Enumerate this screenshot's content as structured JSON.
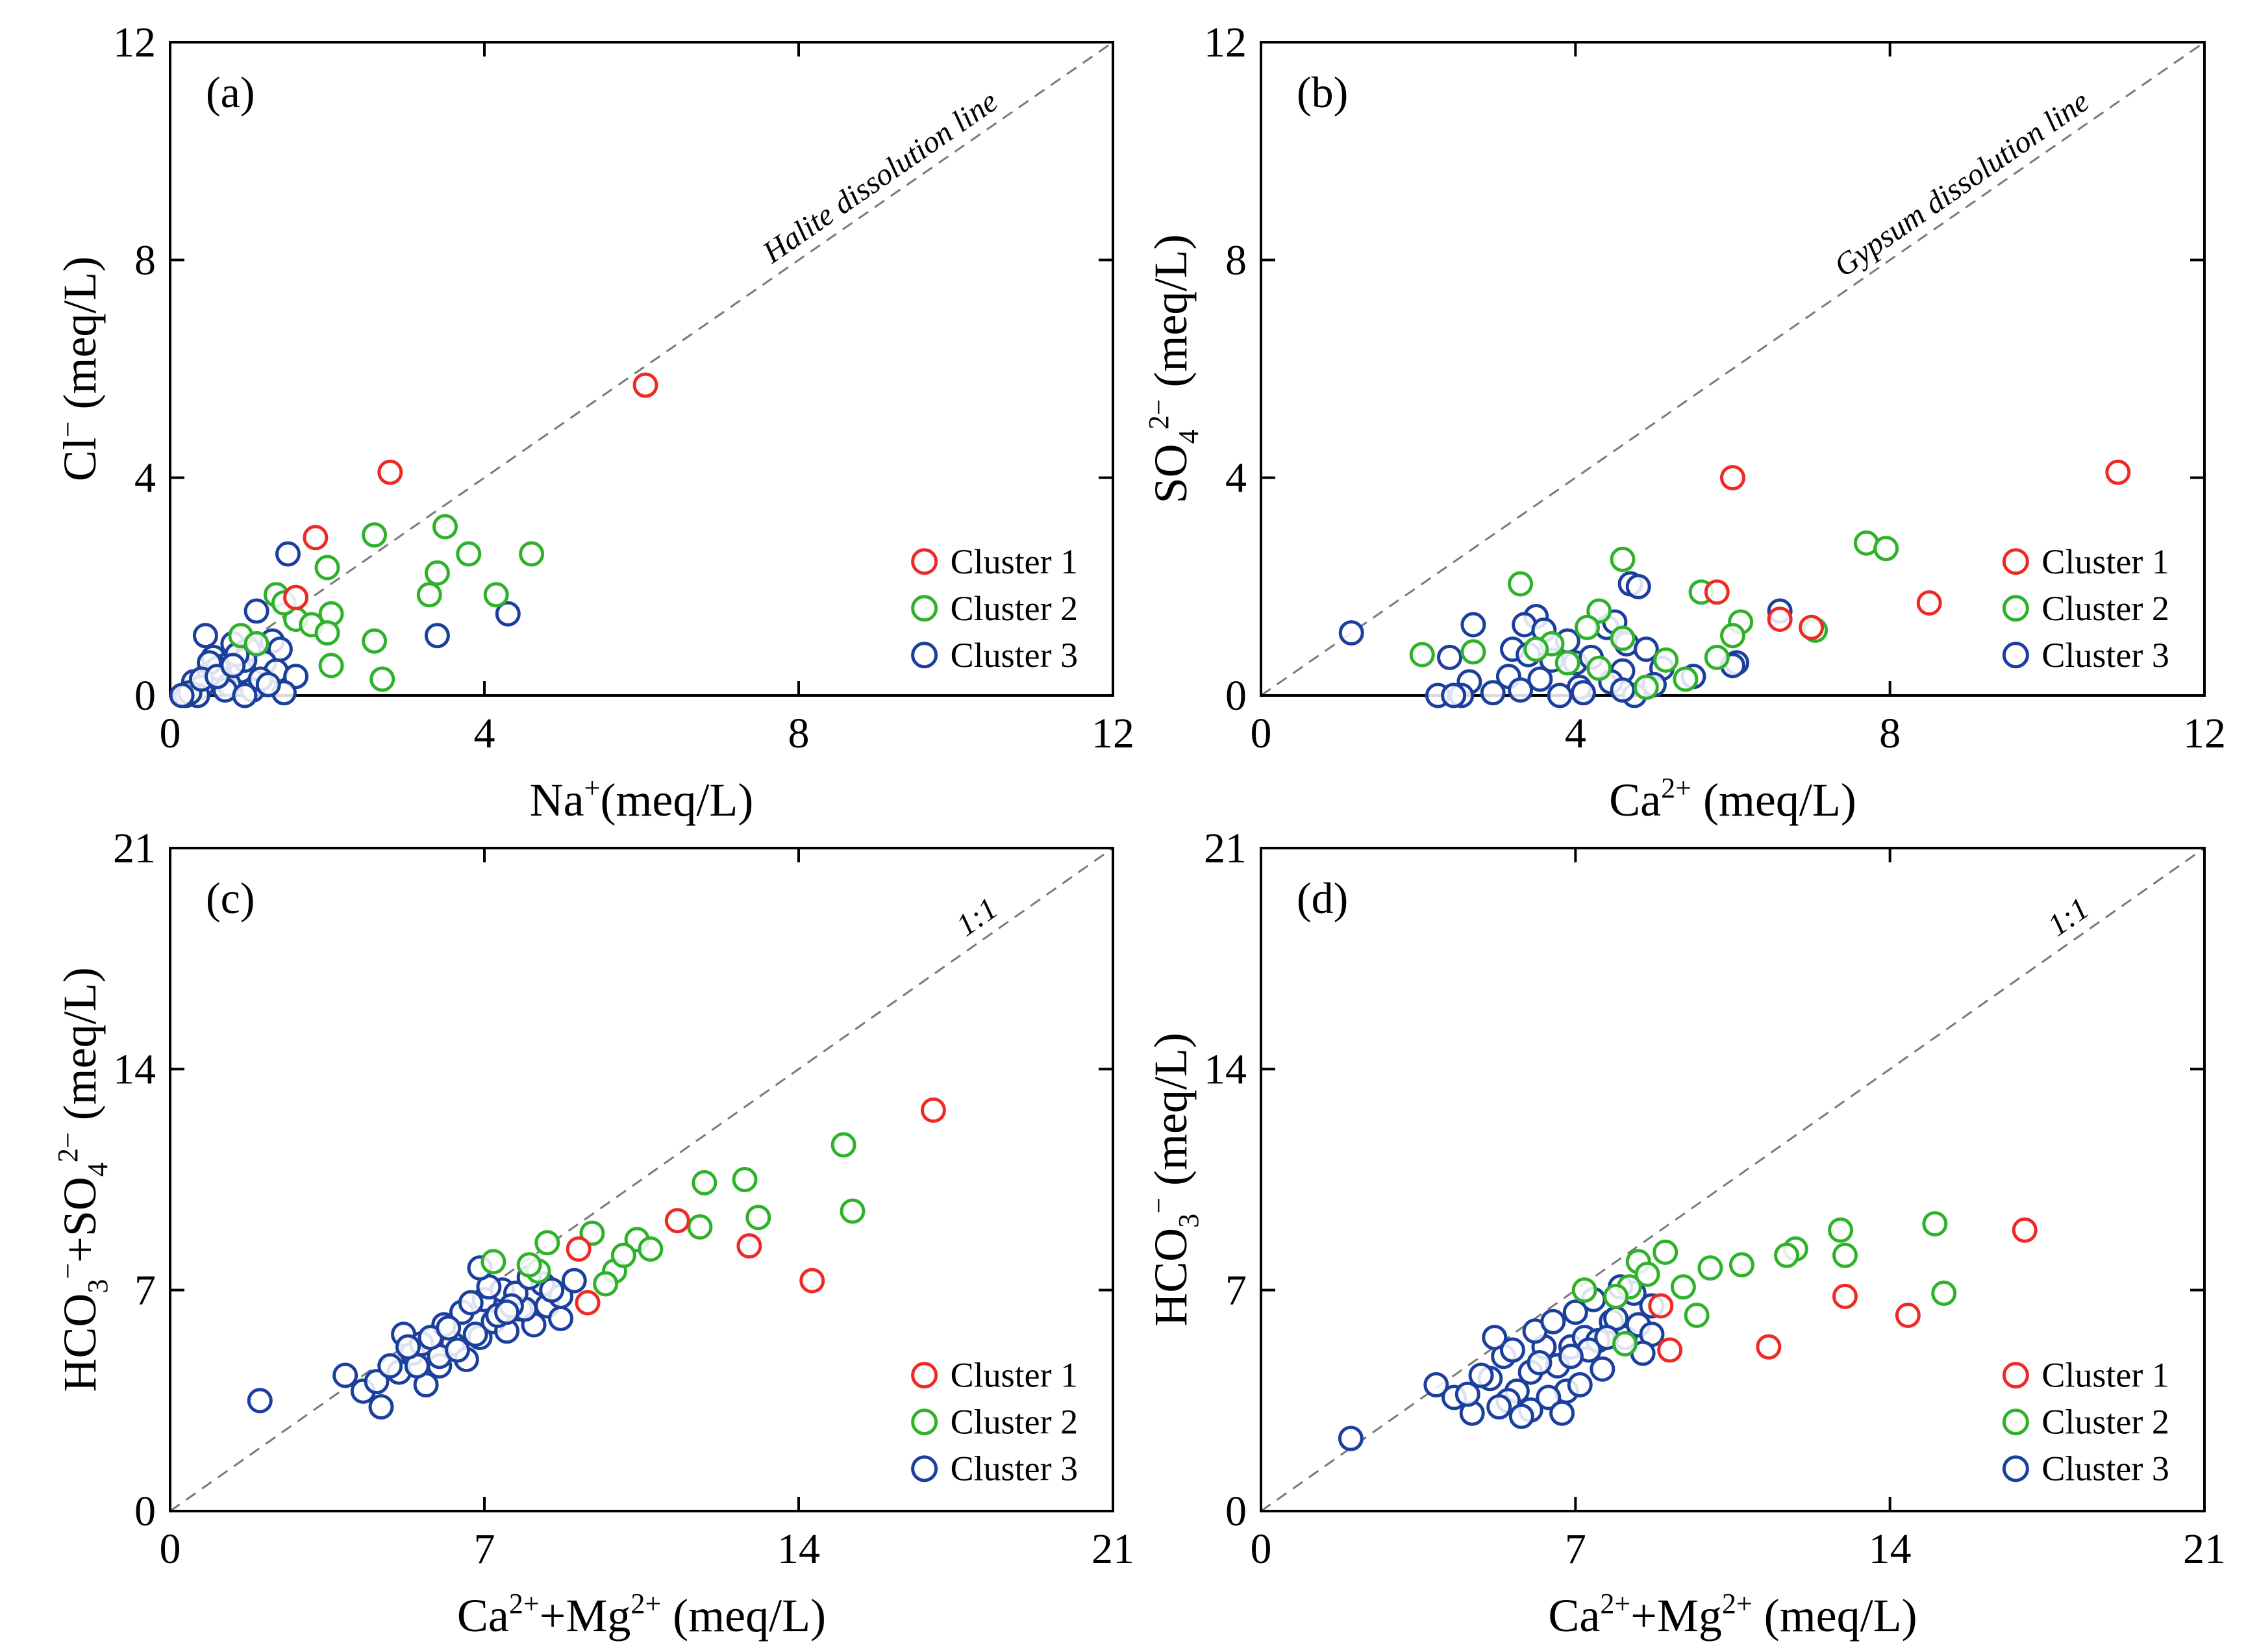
{
  "colors": {
    "cluster1": "#ee2a24",
    "cluster2": "#2fb12a",
    "cluster3": "#1b3f9c",
    "axis": "#000000",
    "refline": "#7a7a7a"
  },
  "legend": [
    "Cluster 1",
    "Cluster 2",
    "Cluster 3"
  ],
  "chart_data": [
    {
      "type": "scatter",
      "panel": "(a)",
      "diag_label": "Halite dissolution line",
      "xlabel": {
        "main": "Na",
        "sup": "+",
        "unit": "(meq/L)"
      },
      "ylabel": {
        "main": "Cl",
        "sup": "−",
        "unit": " (meq/L)"
      },
      "xlim": [
        0,
        12
      ],
      "ylim": [
        0,
        12
      ],
      "xticks": [
        0,
        4,
        8,
        12
      ],
      "yticks": [
        0,
        4,
        8,
        12
      ],
      "tick_labels_x": [
        "0",
        "4",
        "8",
        "12"
      ],
      "tick_labels_y": [
        "0",
        "4",
        "8",
        "12"
      ],
      "series": [
        {
          "name": "Cluster 1",
          "x": [
            6.05,
            2.8,
            1.85,
            1.6
          ],
          "y": [
            5.7,
            4.1,
            2.9,
            1.8
          ]
        },
        {
          "name": "Cluster 2",
          "x": [
            3.5,
            2.6,
            2.0,
            3.8,
            4.6,
            3.4,
            3.3,
            4.15,
            1.35,
            1.6,
            2.05,
            1.8,
            2.0,
            2.6,
            2.05,
            2.7,
            0.9,
            1.1,
            1.45
          ],
          "y": [
            3.1,
            2.95,
            2.35,
            2.6,
            2.6,
            2.25,
            1.85,
            1.85,
            1.85,
            1.4,
            1.5,
            1.3,
            1.15,
            1.0,
            0.55,
            0.3,
            1.1,
            0.95,
            1.7
          ]
        },
        {
          "name": "Cluster 3",
          "x": [
            1.5,
            0.45,
            1.1,
            0.8,
            1.3,
            1.0,
            0.55,
            0.7,
            1.4,
            0.9,
            0.3,
            0.5,
            1.2,
            0.65,
            0.4,
            0.2,
            0.95,
            1.35,
            0.6,
            0.75,
            1.6,
            1.05,
            0.35,
            0.85,
            0.25,
            1.15,
            0.5,
            0.15,
            0.7,
            1.45,
            0.4,
            0.95,
            3.4,
            4.3,
            0.6,
            0.8,
            1.25
          ],
          "y": [
            2.6,
            1.1,
            1.55,
            0.95,
            1.0,
            0.85,
            0.7,
            0.55,
            0.85,
            0.45,
            0.25,
            0.4,
            0.6,
            0.3,
            0.15,
            0.0,
            0.65,
            0.45,
            0.5,
            0.2,
            0.35,
            0.1,
            0.0,
            0.75,
            0.05,
            0.3,
            0.6,
            0.0,
            0.1,
            0.05,
            0.3,
            0.0,
            1.1,
            1.5,
            0.35,
            0.55,
            0.2
          ]
        }
      ]
    },
    {
      "type": "scatter",
      "panel": "(b)",
      "diag_label": "Gypsum dissolution line",
      "xlabel": {
        "main": "Ca",
        "sup": "2+",
        "unit": " (meq/L)"
      },
      "ylabel": {
        "main": "SO",
        "sub": "4",
        "sup": "2−",
        "unit": "  (meq/L)"
      },
      "xlim": [
        0,
        12
      ],
      "ylim": [
        0,
        12
      ],
      "xticks": [
        0,
        4,
        8,
        12
      ],
      "yticks": [
        0,
        4,
        8,
        12
      ],
      "tick_labels_x": [
        "0",
        "4",
        "8",
        "12"
      ],
      "tick_labels_y": [
        "0",
        "4",
        "8",
        "12"
      ],
      "series": [
        {
          "name": "Cluster 1",
          "x": [
            6.0,
            10.9,
            5.8,
            8.5,
            6.6,
            7.0
          ],
          "y": [
            4.0,
            4.1,
            1.9,
            1.7,
            1.4,
            1.25
          ]
        },
        {
          "name": "Cluster 2",
          "x": [
            4.6,
            7.7,
            7.95,
            3.3,
            5.6,
            4.3,
            6.1,
            7.05,
            4.15,
            3.7,
            4.6,
            2.05,
            2.7,
            3.5,
            3.9,
            4.3,
            5.15,
            5.8,
            4.9,
            5.4,
            6.0
          ],
          "y": [
            2.5,
            2.8,
            2.7,
            2.05,
            1.9,
            1.55,
            1.35,
            1.2,
            1.25,
            0.95,
            1.05,
            0.75,
            0.8,
            0.85,
            0.6,
            0.5,
            0.65,
            0.7,
            0.15,
            0.3,
            1.1
          ]
        },
        {
          "name": "Cluster 3",
          "x": [
            1.15,
            2.7,
            3.5,
            4.7,
            4.8,
            6.6,
            3.35,
            3.6,
            3.9,
            4.4,
            4.5,
            4.65,
            4.9,
            3.2,
            3.4,
            3.7,
            4.0,
            4.2,
            4.6,
            5.1,
            5.5,
            6.05,
            2.4,
            2.65,
            3.15,
            3.55,
            4.05,
            4.45,
            4.75,
            2.55,
            2.95,
            3.3,
            3.8,
            4.1,
            4.6,
            5.0,
            6.0,
            2.25,
            2.45
          ],
          "y": [
            1.15,
            1.3,
            1.45,
            2.05,
            2.0,
            1.55,
            1.3,
            1.2,
            1.0,
            1.25,
            1.35,
            0.95,
            0.85,
            0.85,
            0.75,
            0.65,
            0.6,
            0.7,
            0.45,
            0.5,
            0.35,
            0.6,
            0.7,
            0.25,
            0.35,
            0.3,
            0.15,
            0.25,
            0.0,
            0.0,
            0.05,
            0.1,
            0.0,
            0.05,
            0.1,
            0.2,
            0.55,
            0.0,
            0.0
          ]
        }
      ]
    },
    {
      "type": "scatter",
      "panel": "(c)",
      "diag_label": "1:1",
      "xlabel": {
        "main": "Ca",
        "sup": "2+",
        "main2": "+Mg",
        "sup2": "2+",
        "unit": " (meq/L)"
      },
      "ylabel": {
        "main": "HCO",
        "sub": "3",
        "sup": "−",
        "main2": "+SO",
        "sub2": "4",
        "sup2": "2−",
        "unit": "  (meq/L)"
      },
      "xlim": [
        0,
        21
      ],
      "ylim": [
        0,
        21
      ],
      "xticks": [
        0,
        7,
        14,
        21
      ],
      "yticks": [
        0,
        7,
        14,
        21
      ],
      "tick_labels_x": [
        "0",
        "7",
        "14",
        "21"
      ],
      "tick_labels_y": [
        "0",
        "7",
        "14",
        "21"
      ],
      "series": [
        {
          "name": "Cluster 1",
          "x": [
            17.0,
            11.3,
            12.9,
            14.3,
            9.1,
            9.3
          ],
          "y": [
            12.7,
            9.2,
            8.4,
            7.3,
            8.3,
            6.6
          ]
        },
        {
          "name": "Cluster 2",
          "x": [
            15.0,
            11.9,
            12.8,
            13.1,
            15.2,
            11.8,
            9.4,
            10.4,
            10.7,
            8.4,
            7.2,
            9.9,
            10.1,
            8.2,
            9.7,
            8.0
          ],
          "y": [
            11.6,
            10.4,
            10.5,
            9.3,
            9.5,
            9.0,
            8.8,
            8.6,
            8.3,
            8.5,
            7.9,
            7.6,
            8.1,
            7.6,
            7.2,
            7.8
          ]
        },
        {
          "name": "Cluster 3",
          "x": [
            2.0,
            3.9,
            4.3,
            4.7,
            5.1,
            5.4,
            5.7,
            6.0,
            6.3,
            6.6,
            6.9,
            7.2,
            7.5,
            7.8,
            8.1,
            8.4,
            8.7,
            5.2,
            5.6,
            6.1,
            6.5,
            7.0,
            7.4,
            7.9,
            8.3,
            8.7,
            9.0,
            5.5,
            6.0,
            6.4,
            6.8,
            7.3,
            7.7,
            4.6,
            4.9,
            5.3,
            5.8,
            6.2,
            6.7,
            7.1,
            7.6,
            8.0,
            8.5,
            6.9,
            7.5
          ],
          "y": [
            3.5,
            4.3,
            3.8,
            3.3,
            4.4,
            5.0,
            4.0,
            4.6,
            5.3,
            4.8,
            5.5,
            6.0,
            5.7,
            6.4,
            5.9,
            6.5,
            6.1,
            5.6,
            5.3,
            5.9,
            6.3,
            6.7,
            7.0,
            6.4,
            7.2,
            6.8,
            7.3,
            4.6,
            4.9,
            5.1,
            5.6,
            6.2,
            6.9,
            4.1,
            4.6,
            5.2,
            5.5,
            5.8,
            6.6,
            7.1,
            6.5,
            7.4,
            7.0,
            7.7,
            6.3
          ]
        }
      ]
    },
    {
      "type": "scatter",
      "panel": "(d)",
      "diag_label": "1:1",
      "xlabel": {
        "main": "Ca",
        "sup": "2+",
        "main2": "+Mg",
        "sup2": "2+",
        "unit": " (meq/L)"
      },
      "ylabel": {
        "main": "HCO",
        "sub": "3",
        "sup": "−",
        "unit": "  (meq/L)"
      },
      "xlim": [
        0,
        21
      ],
      "ylim": [
        0,
        21
      ],
      "xticks": [
        0,
        7,
        14,
        21
      ],
      "yticks": [
        0,
        7,
        14,
        21
      ],
      "tick_labels_x": [
        "0",
        "7",
        "14",
        "21"
      ],
      "tick_labels_y": [
        "0",
        "7",
        "14",
        "21"
      ],
      "series": [
        {
          "name": "Cluster 1",
          "x": [
            17.0,
            13.0,
            14.4,
            11.3,
            8.9,
            9.1
          ],
          "y": [
            8.9,
            6.8,
            6.2,
            5.2,
            6.5,
            5.1
          ]
        },
        {
          "name": "Cluster 2",
          "x": [
            15.0,
            12.9,
            11.9,
            13.0,
            15.2,
            11.7,
            9.0,
            10.7,
            10.0,
            8.4,
            7.2,
            9.4,
            9.7,
            8.2,
            7.9,
            8.6,
            8.1
          ],
          "y": [
            9.1,
            8.9,
            8.3,
            8.1,
            6.9,
            8.1,
            8.2,
            7.8,
            7.7,
            7.9,
            7.0,
            7.1,
            6.2,
            7.1,
            6.8,
            7.5,
            5.3
          ]
        },
        {
          "name": "Cluster 3",
          "x": [
            2.0,
            3.9,
            4.3,
            4.7,
            5.1,
            5.4,
            5.7,
            6.0,
            6.3,
            6.6,
            6.9,
            7.2,
            7.5,
            7.8,
            8.1,
            8.4,
            8.7,
            5.2,
            5.6,
            6.1,
            6.5,
            7.0,
            7.4,
            7.9,
            8.3,
            8.7,
            6.8,
            5.5,
            6.0,
            6.4,
            7.3,
            7.7,
            4.6,
            4.9,
            5.3,
            5.8,
            6.2,
            6.7,
            7.1,
            7.6,
            8.0,
            8.5,
            6.9
          ],
          "y": [
            2.3,
            4.0,
            3.6,
            3.1,
            4.2,
            4.9,
            3.8,
            4.4,
            5.2,
            4.6,
            5.2,
            5.5,
            5.4,
            6.0,
            5.5,
            5.9,
            5.6,
            5.5,
            5.1,
            5.7,
            6.0,
            6.3,
            6.7,
            6.1,
            6.9,
            6.5,
            3.8,
            3.5,
            3.2,
            3.6,
            5.1,
            5.5,
            3.7,
            4.3,
            3.3,
            3.0,
            4.7,
            3.1,
            4.0,
            4.5,
            7.1,
            5.0,
            4.9
          ]
        }
      ]
    }
  ]
}
